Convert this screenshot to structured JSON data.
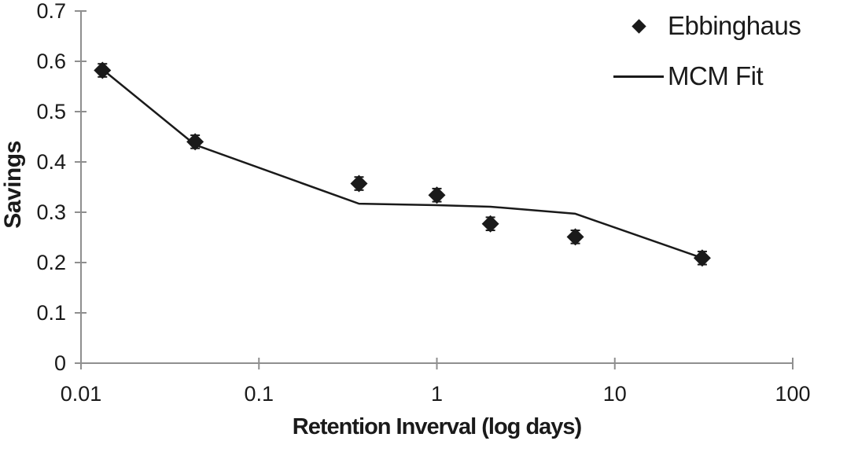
{
  "chart_data": {
    "type": "scatter",
    "title": "",
    "xlabel": "Retention Inverval (log days)",
    "ylabel": "Savings",
    "x_scale": "log",
    "xlim": [
      0.01,
      100
    ],
    "ylim": [
      0,
      0.7
    ],
    "x_ticks": [
      "0.01",
      "0.1",
      "1",
      "10",
      "100"
    ],
    "y_ticks": [
      "0",
      "0.1",
      "0.2",
      "0.3",
      "0.4",
      "0.5",
      "0.6",
      "0.7"
    ],
    "grid": false,
    "legend_position": "top-right",
    "background_color": "#ffffff",
    "axis_color": "#8f8f8f",
    "text_color": "#1a1a1a",
    "series": [
      {
        "name": "Ebbinghaus",
        "type": "scatter",
        "marker": "diamond",
        "color": "#1a1a1a",
        "has_error_bars": true,
        "y_error": 0.013,
        "x": [
          0.0132,
          0.0438,
          0.365,
          1,
          2,
          6,
          31
        ],
        "y": [
          0.582,
          0.44,
          0.357,
          0.334,
          0.277,
          0.251,
          0.209
        ]
      },
      {
        "name": "MCM Fit",
        "type": "line",
        "color": "#1a1a1a",
        "x": [
          0.0132,
          0.0438,
          0.365,
          1,
          2,
          6,
          31
        ],
        "y": [
          0.584,
          0.434,
          0.317,
          0.314,
          0.311,
          0.297,
          0.209
        ]
      }
    ]
  }
}
